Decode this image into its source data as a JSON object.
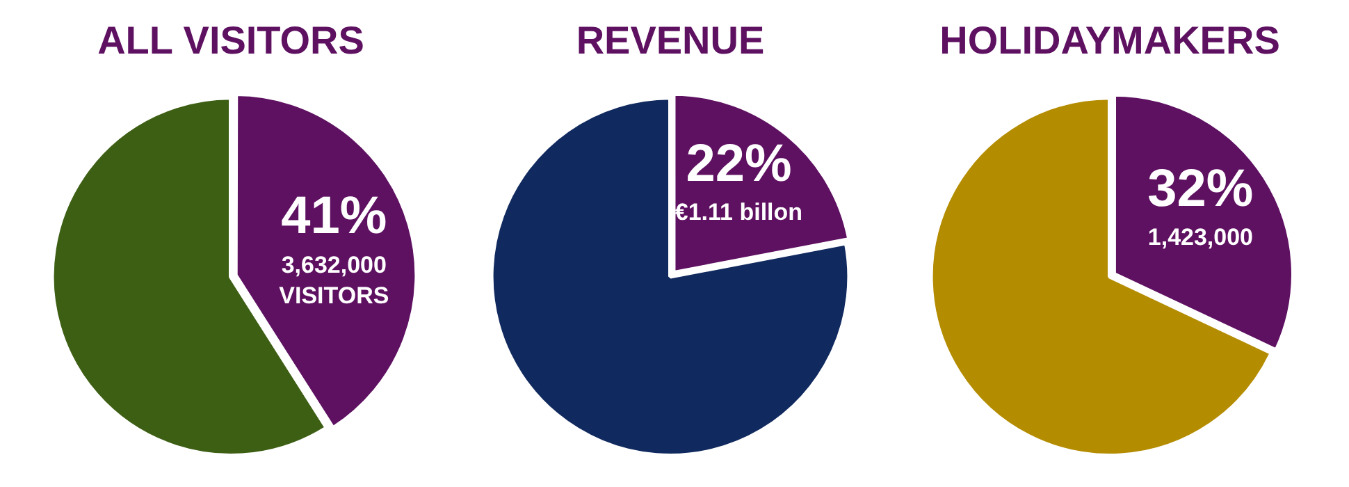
{
  "chart_data": [
    {
      "type": "pie",
      "title": "ALL VISITORS",
      "categories": [
        null,
        null
      ],
      "values": [
        41,
        59
      ],
      "colors": [
        "#5e1061",
        "#3d5f14"
      ],
      "value_labels": [
        "41%",
        null
      ],
      "annotations": [
        "3,632,000 VISITORS"
      ]
    },
    {
      "type": "pie",
      "title": "REVENUE",
      "categories": [
        null,
        null
      ],
      "values": [
        22,
        78
      ],
      "colors": [
        "#5e1061",
        "#10295e"
      ],
      "value_labels": [
        "22%",
        null
      ],
      "annotations": [
        "€1.11 billon"
      ]
    },
    {
      "type": "pie",
      "title": "HOLIDAYMAKERS",
      "categories": [
        null,
        null
      ],
      "values": [
        32,
        68
      ],
      "colors": [
        "#5e1061",
        "#b48c00"
      ],
      "value_labels": [
        "32%",
        null
      ],
      "annotations": [
        "1,423,000"
      ]
    }
  ]
}
